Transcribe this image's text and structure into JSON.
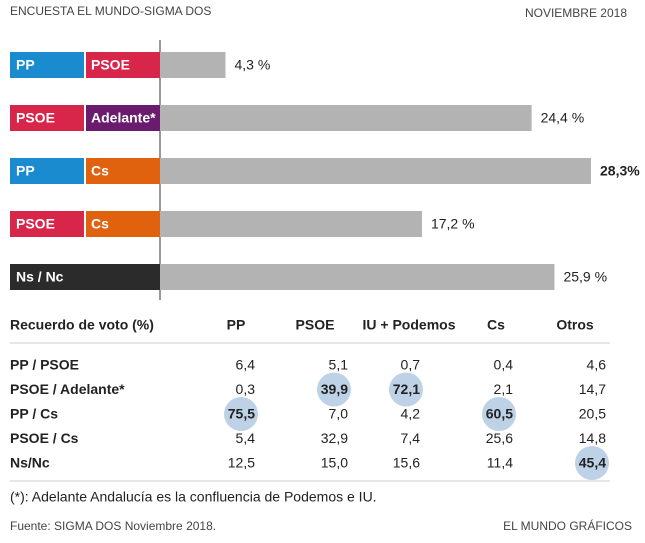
{
  "header": {
    "title": "ENCUESTA EL MUNDO-SIGMA DOS",
    "date": "NOVIEMBRE 2018"
  },
  "chart_data": {
    "type": "bar",
    "categories": [
      [
        "PP",
        "PSOE"
      ],
      [
        "PSOE",
        "Adelante*"
      ],
      [
        "PP",
        "Cs"
      ],
      [
        "PSOE",
        "Cs"
      ],
      [
        "Ns / Nc"
      ]
    ],
    "category_colors": [
      [
        "#1b8bd0",
        "#d8264a"
      ],
      [
        "#d8264a",
        "#6a1b6e"
      ],
      [
        "#1b8bd0",
        "#e0620f"
      ],
      [
        "#d8264a",
        "#e0620f"
      ],
      [
        "#2b2b2b"
      ]
    ],
    "values": [
      4.3,
      24.4,
      28.3,
      17.2,
      25.9
    ],
    "value_labels": [
      "4,3 %",
      "24,4 %",
      "28,3%",
      "17,2 %",
      "25,9 %"
    ],
    "color": "#b3b3b3"
  },
  "table": {
    "header": [
      "Recuerdo de voto (%)",
      "PP",
      "PSOE",
      "IU + Podemos",
      "Cs",
      "Otros"
    ],
    "rows": [
      [
        "PP / PSOE",
        "6,4",
        "5,1",
        "0,7",
        "0,4",
        "4,6"
      ],
      [
        "PSOE / Adelante*",
        "0,3",
        "39,9",
        "72,1",
        "2,1",
        "14,7"
      ],
      [
        "PP / Cs",
        "75,5",
        "7,0",
        "4,2",
        "60,5",
        "20,5"
      ],
      [
        "PSOE / Cs",
        "5,4",
        "32,9",
        "7,4",
        "25,6",
        "14,8"
      ],
      [
        "Ns/Nc",
        "12,5",
        "15,0",
        "15,6",
        "11,4",
        "45,4"
      ]
    ],
    "circled": [
      [
        1,
        2
      ],
      [
        1,
        3
      ],
      [
        2,
        1
      ],
      [
        2,
        4
      ],
      [
        4,
        5
      ]
    ],
    "circle_color": "#bdd2e6"
  },
  "footnote": "(*): Adelante Andalucía es la confluencia de Podemos e IU.",
  "source": "Fuente: SIGMA DOS Noviembre 2018.",
  "credit": "EL MUNDO GRÁFICOS"
}
